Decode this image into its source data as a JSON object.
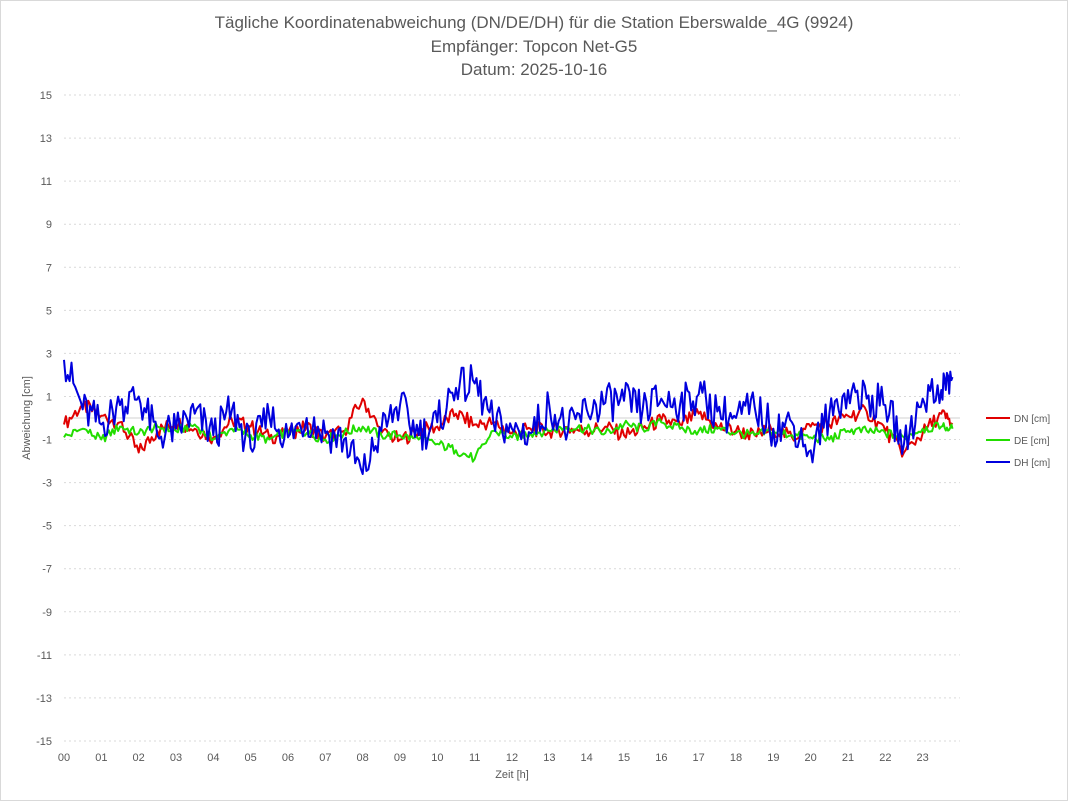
{
  "chart_data": {
    "type": "line",
    "title": "Tägliche Koordinatenabweichung (DN/DE/DH) für die Station Eberswalde_4G (9924)",
    "subtitle": "Empfänger: Topcon Net-G5",
    "date_line": "Datum: 2025-10-16",
    "xlabel": "Zeit [h]",
    "ylabel": "Abweichung [cm]",
    "xlim": [
      0,
      24
    ],
    "ylim": [
      -15,
      15
    ],
    "x_ticks": [
      "00",
      "01",
      "02",
      "03",
      "04",
      "05",
      "06",
      "07",
      "08",
      "09",
      "10",
      "11",
      "12",
      "13",
      "14",
      "15",
      "16",
      "17",
      "18",
      "19",
      "20",
      "21",
      "22",
      "23"
    ],
    "y_ticks": [
      "15",
      "13",
      "11",
      "9",
      "7",
      "5",
      "3",
      "1",
      "-1",
      "-3",
      "-5",
      "-7",
      "-9",
      "-11",
      "-13",
      "-15"
    ],
    "grid": "horizontal dotted",
    "legend_position": "right",
    "x": [
      0,
      0.5,
      1,
      1.5,
      2,
      2.5,
      3,
      3.5,
      4,
      4.5,
      5,
      5.5,
      6,
      6.5,
      7,
      7.5,
      8,
      8.5,
      9,
      9.5,
      10,
      10.5,
      11,
      11.5,
      12,
      12.5,
      13,
      13.5,
      14,
      14.5,
      15,
      15.5,
      16,
      16.5,
      17,
      17.5,
      18,
      18.5,
      19,
      19.5,
      20,
      20.5,
      21,
      21.5,
      22,
      22.5,
      23,
      23.5,
      23.8
    ],
    "series": [
      {
        "name": "DN [cm]",
        "color": "#e00000",
        "values": [
          -0.3,
          0.6,
          0.1,
          -0.2,
          -1.6,
          -0.6,
          -0.2,
          -0.5,
          -0.9,
          -0.1,
          -0.4,
          -0.9,
          -0.7,
          -0.4,
          -0.9,
          -0.6,
          0.9,
          -0.7,
          -1.0,
          -0.6,
          -0.4,
          0.2,
          -0.3,
          -0.2,
          -0.7,
          -0.5,
          -0.6,
          -0.5,
          -0.6,
          -0.4,
          -0.8,
          -0.5,
          -0.1,
          -0.3,
          0.2,
          -0.4,
          -0.6,
          -0.8,
          -0.5,
          -0.9,
          -0.4,
          -0.3,
          0.1,
          0.3,
          -0.6,
          -1.6,
          -0.7,
          0.2,
          -0.3
        ]
      },
      {
        "name": "DE [cm]",
        "color": "#22dd00",
        "values": [
          -0.9,
          -0.5,
          -1.0,
          -0.4,
          -0.7,
          -0.4,
          -0.6,
          -0.3,
          -1.0,
          -0.5,
          -0.8,
          -1.0,
          -0.6,
          -0.7,
          -1.0,
          -0.7,
          -0.4,
          -0.8,
          -0.8,
          -1.0,
          -1.2,
          -1.5,
          -1.9,
          -0.6,
          -0.9,
          -0.7,
          -0.6,
          -0.4,
          -0.5,
          -0.7,
          -0.3,
          -0.5,
          -0.2,
          -0.5,
          -0.6,
          -0.5,
          -0.7,
          -0.8,
          -0.6,
          -0.8,
          -0.9,
          -1.0,
          -0.6,
          -0.6,
          -0.7,
          -0.9,
          -0.5,
          -0.4,
          -0.5
        ]
      },
      {
        "name": "DH [cm]",
        "color": "#0000dd",
        "values": [
          2.7,
          0.4,
          -0.3,
          0.6,
          1.0,
          -0.8,
          -0.5,
          0.2,
          -0.8,
          0.4,
          -1.4,
          0.1,
          -0.9,
          0.0,
          -0.7,
          -1.0,
          -2.6,
          -0.6,
          0.6,
          -0.8,
          -0.2,
          1.4,
          1.6,
          -0.2,
          -0.5,
          -0.7,
          0.6,
          -0.6,
          0.4,
          0.7,
          0.8,
          0.4,
          0.9,
          0.6,
          1.1,
          0.3,
          0.0,
          0.5,
          -0.5,
          -0.2,
          -1.5,
          0.2,
          1.3,
          0.9,
          0.6,
          -1.2,
          0.9,
          1.3,
          1.9
        ]
      }
    ]
  }
}
